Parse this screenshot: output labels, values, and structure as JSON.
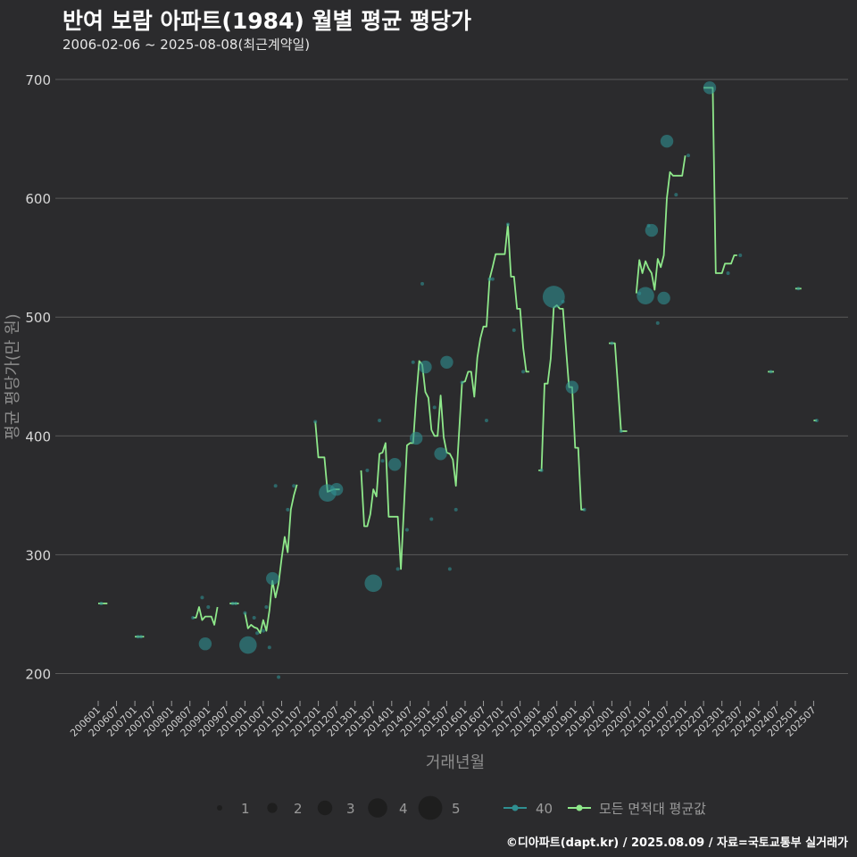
{
  "header": {
    "title": "반여 보람 아파트(1984) 월별 평균 평당가",
    "subtitle": "2006-02-06 ~ 2025-08-08(최근계약일)"
  },
  "footer": {
    "credit": "©디아파트(dapt.kr) / 2025.08.09 / 자료=국토교통부 실거래가"
  },
  "chart_data": {
    "type": "line",
    "title": "반여 보람 아파트(1984) 월별 평균 평당가",
    "subtitle": "2006-02-06 ~ 2025-08-08(최근계약일)",
    "xlabel": "거래년월",
    "ylabel": "평균 평당가(만 원)",
    "ylim": [
      175,
      750
    ],
    "yticks": [
      200,
      300,
      400,
      500,
      600,
      700
    ],
    "x_range": [
      "2006-01",
      "2025-12"
    ],
    "xticks": [
      "200601",
      "200607",
      "200701",
      "200707",
      "200801",
      "200807",
      "200901",
      "200907",
      "201001",
      "201007",
      "201101",
      "201107",
      "201201",
      "201207",
      "201301",
      "201307",
      "201401",
      "201407",
      "201501",
      "201507",
      "201601",
      "201607",
      "201701",
      "201707",
      "201801",
      "201807",
      "201901",
      "201907",
      "202001",
      "202007",
      "202101",
      "202107",
      "202201",
      "202207",
      "202301",
      "202307",
      "202401",
      "202407",
      "202501",
      "202507"
    ],
    "grid": true,
    "legend": {
      "position": "bottom",
      "size_title": "",
      "size_entries": [
        "1",
        "2",
        "3",
        "4",
        "5"
      ],
      "series_entries": [
        "40",
        "모든 면적대 평균값"
      ]
    },
    "colors": {
      "series_40": "#2f8f91",
      "average_line": "#8ee88a",
      "background": "#2b2b2d",
      "grid": "#5a5a5a"
    },
    "series": [
      {
        "name": "모든 면적대 평균값",
        "style": "line",
        "segments": [
          [
            [
              "2006-01",
              259
            ],
            [
              "2006-04",
              259
            ]
          ],
          [
            [
              "2007-01",
              231
            ],
            [
              "2007-04",
              231
            ]
          ],
          [
            [
              "2008-08",
              247
            ],
            [
              "2008-09",
              247
            ],
            [
              "2008-10",
              256
            ],
            [
              "2008-11",
              245
            ],
            [
              "2008-12",
              248
            ],
            [
              "2009-01",
              248
            ],
            [
              "2009-02",
              248
            ],
            [
              "2009-03",
              241
            ],
            [
              "2009-04",
              256
            ]
          ],
          [
            [
              "2009-08",
              259
            ],
            [
              "2009-11",
              259
            ]
          ],
          [
            [
              "2010-01",
              251
            ],
            [
              "2010-02",
              238
            ],
            [
              "2010-03",
              241
            ],
            [
              "2010-04",
              239
            ],
            [
              "2010-05",
              238
            ],
            [
              "2010-06",
              234
            ],
            [
              "2010-07",
              245
            ],
            [
              "2010-08",
              236
            ],
            [
              "2010-09",
              253
            ],
            [
              "2010-10",
              278
            ],
            [
              "2010-11",
              264
            ],
            [
              "2010-12",
              276
            ],
            [
              "2011-01",
              297
            ],
            [
              "2011-02",
              315
            ],
            [
              "2011-03",
              302
            ],
            [
              "2011-04",
              338
            ],
            [
              "2011-05",
              350
            ],
            [
              "2011-06",
              359
            ]
          ],
          [
            [
              "2011-12",
              412
            ],
            [
              "2012-01",
              382
            ],
            [
              "2012-03",
              382
            ],
            [
              "2012-04",
              353
            ],
            [
              "2012-05",
              354
            ],
            [
              "2012-06",
              355
            ],
            [
              "2012-07",
              355
            ],
            [
              "2012-08",
              355
            ]
          ],
          [
            [
              "2013-03",
              371
            ],
            [
              "2013-04",
              324
            ],
            [
              "2013-05",
              324
            ],
            [
              "2013-06",
              334
            ],
            [
              "2013-07",
              355
            ],
            [
              "2013-08",
              349
            ],
            [
              "2013-09",
              385
            ],
            [
              "2013-10",
              386
            ],
            [
              "2013-11",
              394
            ],
            [
              "2013-12",
              332
            ],
            [
              "2014-01",
              332
            ],
            [
              "2014-02",
              332
            ],
            [
              "2014-03",
              332
            ],
            [
              "2014-04",
              288
            ],
            [
              "2014-05",
              340
            ],
            [
              "2014-06",
              392
            ],
            [
              "2014-07",
              394
            ],
            [
              "2014-08",
              394
            ],
            [
              "2014-09",
              432
            ],
            [
              "2014-10",
              463
            ],
            [
              "2014-11",
              460
            ],
            [
              "2014-12",
              437
            ],
            [
              "2015-01",
              432
            ],
            [
              "2015-02",
              405
            ],
            [
              "2015-03",
              400
            ],
            [
              "2015-04",
              400
            ],
            [
              "2015-05",
              434
            ],
            [
              "2015-06",
              399
            ],
            [
              "2015-07",
              386
            ],
            [
              "2015-08",
              385
            ],
            [
              "2015-09",
              380
            ],
            [
              "2015-10",
              358
            ],
            [
              "2015-11",
              401
            ],
            [
              "2015-12",
              445
            ],
            [
              "2016-01",
              446
            ],
            [
              "2016-02",
              454
            ],
            [
              "2016-03",
              454
            ],
            [
              "2016-04",
              433
            ],
            [
              "2016-05",
              466
            ],
            [
              "2016-06",
              482
            ],
            [
              "2016-07",
              492
            ],
            [
              "2016-08",
              492
            ],
            [
              "2016-09",
              532
            ],
            [
              "2016-10",
              542
            ],
            [
              "2016-11",
              553
            ],
            [
              "2016-12",
              553
            ],
            [
              "2017-01",
              553
            ],
            [
              "2017-02",
              553
            ],
            [
              "2017-03",
              578
            ],
            [
              "2017-04",
              534
            ],
            [
              "2017-05",
              534
            ],
            [
              "2017-06",
              507
            ],
            [
              "2017-07",
              507
            ],
            [
              "2017-08",
              474
            ],
            [
              "2017-09",
              454
            ],
            [
              "2017-10",
              454
            ]
          ],
          [
            [
              "2018-01",
              371
            ],
            [
              "2018-02",
              371
            ],
            [
              "2018-03",
              444
            ],
            [
              "2018-04",
              444
            ],
            [
              "2018-05",
              465
            ],
            [
              "2018-06",
              508
            ],
            [
              "2018-07",
              510
            ],
            [
              "2018-08",
              507
            ],
            [
              "2018-09",
              507
            ],
            [
              "2018-10",
              474
            ],
            [
              "2018-11",
              441
            ],
            [
              "2018-12",
              441
            ],
            [
              "2019-01",
              390
            ],
            [
              "2019-02",
              390
            ],
            [
              "2019-03",
              338
            ],
            [
              "2019-04",
              338
            ]
          ],
          [
            [
              "2019-12",
              478
            ],
            [
              "2020-01",
              478
            ],
            [
              "2020-02",
              478
            ],
            [
              "2020-03",
              442
            ],
            [
              "2020-04",
              404
            ],
            [
              "2020-05",
              404
            ],
            [
              "2020-06",
              404
            ]
          ],
          [
            [
              "2020-09",
              520
            ],
            [
              "2020-10",
              548
            ],
            [
              "2020-11",
              537
            ],
            [
              "2020-12",
              547
            ],
            [
              "2021-01",
              541
            ],
            [
              "2021-02",
              537
            ],
            [
              "2021-03",
              523
            ],
            [
              "2021-04",
              549
            ],
            [
              "2021-05",
              542
            ],
            [
              "2021-06",
              552
            ],
            [
              "2021-07",
              600
            ],
            [
              "2021-08",
              622
            ],
            [
              "2021-09",
              619
            ],
            [
              "2021-10",
              619
            ],
            [
              "2021-11",
              619
            ],
            [
              "2021-12",
              619
            ],
            [
              "2022-01",
              636
            ]
          ],
          [
            [
              "2022-07",
              693
            ],
            [
              "2022-08",
              693
            ],
            [
              "2022-09",
              693
            ],
            [
              "2022-10",
              693
            ],
            [
              "2022-11",
              537
            ],
            [
              "2022-12",
              537
            ],
            [
              "2023-01",
              537
            ],
            [
              "2023-02",
              545
            ],
            [
              "2023-03",
              545
            ],
            [
              "2023-04",
              545
            ],
            [
              "2023-05",
              552
            ],
            [
              "2023-06",
              552
            ]
          ],
          [
            [
              "2024-04",
              454
            ],
            [
              "2024-06",
              454
            ]
          ],
          [
            [
              "2025-01",
              524
            ],
            [
              "2025-03",
              524
            ]
          ],
          [
            [
              "2025-07",
              413
            ],
            [
              "2025-08",
              413
            ]
          ]
        ]
      },
      {
        "name": "40",
        "style": "points",
        "points": [
          [
            "2006-02",
            259,
            1
          ],
          [
            "2007-02",
            231,
            1
          ],
          [
            "2007-03",
            231,
            1
          ],
          [
            "2008-08",
            247,
            1
          ],
          [
            "2008-11",
            264,
            1
          ],
          [
            "2008-12",
            225,
            3
          ],
          [
            "2009-01",
            256,
            1
          ],
          [
            "2009-09",
            259,
            1
          ],
          [
            "2009-10",
            259,
            1
          ],
          [
            "2010-01",
            251,
            1
          ],
          [
            "2010-02",
            224,
            4
          ],
          [
            "2010-04",
            247,
            1
          ],
          [
            "2010-05",
            234,
            1
          ],
          [
            "2010-07",
            236,
            1
          ],
          [
            "2010-08",
            256,
            1
          ],
          [
            "2010-09",
            222,
            1
          ],
          [
            "2010-10",
            280,
            3
          ],
          [
            "2010-11",
            358,
            1
          ],
          [
            "2010-12",
            197,
            1
          ],
          [
            "2011-03",
            338,
            1
          ],
          [
            "2011-05",
            358,
            1
          ],
          [
            "2011-12",
            412,
            1
          ],
          [
            "2012-04",
            352,
            4
          ],
          [
            "2012-07",
            355,
            3
          ],
          [
            "2013-05",
            371,
            1
          ],
          [
            "2013-07",
            276,
            4
          ],
          [
            "2013-09",
            413,
            1
          ],
          [
            "2013-10",
            379,
            1
          ],
          [
            "2014-02",
            376,
            3
          ],
          [
            "2014-03",
            288,
            1
          ],
          [
            "2014-06",
            321,
            1
          ],
          [
            "2014-08",
            462,
            1
          ],
          [
            "2014-09",
            398,
            3
          ],
          [
            "2014-11",
            528,
            1
          ],
          [
            "2014-12",
            458,
            3
          ],
          [
            "2015-02",
            330,
            1
          ],
          [
            "2015-03",
            424,
            1
          ],
          [
            "2015-05",
            385,
            3
          ],
          [
            "2015-07",
            462,
            3
          ],
          [
            "2015-08",
            288,
            1
          ],
          [
            "2015-10",
            338,
            1
          ],
          [
            "2015-12",
            445,
            1
          ],
          [
            "2016-08",
            413,
            1
          ],
          [
            "2016-09",
            532,
            1
          ],
          [
            "2016-10",
            532,
            1
          ],
          [
            "2017-03",
            578,
            1
          ],
          [
            "2017-05",
            489,
            1
          ],
          [
            "2017-08",
            454,
            1
          ],
          [
            "2018-02",
            371,
            1
          ],
          [
            "2018-06",
            517,
            5
          ],
          [
            "2018-09",
            513,
            1
          ],
          [
            "2018-12",
            441,
            3
          ],
          [
            "2019-04",
            338,
            1
          ],
          [
            "2020-01",
            478,
            1
          ],
          [
            "2020-04",
            404,
            1
          ],
          [
            "2020-10",
            520,
            1
          ],
          [
            "2020-12",
            518,
            4
          ],
          [
            "2021-01",
            577,
            1
          ],
          [
            "2021-02",
            573,
            3
          ],
          [
            "2021-04",
            495,
            1
          ],
          [
            "2021-06",
            516,
            3
          ],
          [
            "2021-07",
            648,
            3
          ],
          [
            "2021-10",
            603,
            1
          ],
          [
            "2022-02",
            636,
            1
          ],
          [
            "2022-09",
            693,
            3
          ],
          [
            "2023-03",
            537,
            1
          ],
          [
            "2023-07",
            552,
            1
          ],
          [
            "2024-05",
            454,
            1
          ],
          [
            "2025-02",
            524,
            1
          ],
          [
            "2025-08",
            413,
            1
          ]
        ]
      }
    ]
  }
}
